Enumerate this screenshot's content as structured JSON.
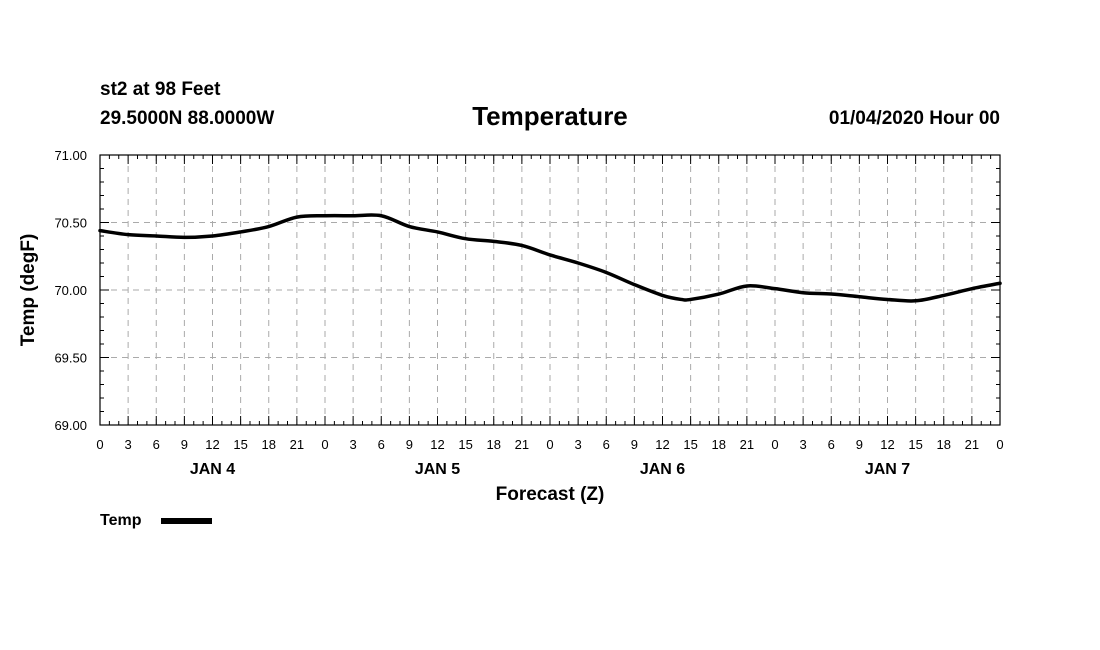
{
  "header": {
    "station": "st2 at 98 Feet",
    "location": "29.5000N 88.0000W",
    "title": "Temperature",
    "datetime": "01/04/2020 Hour 00"
  },
  "chart_data": {
    "type": "line",
    "title": "Temperature",
    "xlabel": "Forecast (Z)",
    "ylabel": "Temp (degF)",
    "ylim": [
      69.0,
      71.0
    ],
    "y_ticks": [
      "69.00",
      "69.50",
      "70.00",
      "70.50",
      "71.00"
    ],
    "xlim": [
      0,
      96
    ],
    "x_tick_labels": [
      "0",
      "3",
      "6",
      "9",
      "12",
      "15",
      "18",
      "21",
      "0",
      "3",
      "6",
      "9",
      "12",
      "15",
      "18",
      "21",
      "0",
      "3",
      "6",
      "9",
      "12",
      "15",
      "18",
      "21",
      "0",
      "3",
      "6",
      "9",
      "12",
      "15",
      "18",
      "21",
      "0"
    ],
    "day_labels": [
      {
        "label": "JAN 4",
        "hour": 12
      },
      {
        "label": "JAN 5",
        "hour": 36
      },
      {
        "label": "JAN 6",
        "hour": 60
      },
      {
        "label": "JAN 7",
        "hour": 84
      }
    ],
    "grid": true,
    "legend_position": "bottom-left",
    "series": [
      {
        "name": "Temp",
        "color": "#000000",
        "x": [
          0,
          3,
          6,
          9,
          12,
          15,
          18,
          21,
          24,
          27,
          30,
          33,
          36,
          39,
          42,
          45,
          48,
          51,
          54,
          57,
          60,
          62,
          63,
          66,
          69,
          72,
          75,
          78,
          81,
          84,
          87,
          90,
          93,
          96
        ],
        "y": [
          70.44,
          70.41,
          70.4,
          70.39,
          70.4,
          70.43,
          70.47,
          70.54,
          70.55,
          70.55,
          70.55,
          70.47,
          70.43,
          70.38,
          70.36,
          70.33,
          70.26,
          70.2,
          70.13,
          70.04,
          69.96,
          69.93,
          69.93,
          69.97,
          70.03,
          70.01,
          69.98,
          69.97,
          69.95,
          69.93,
          69.92,
          69.96,
          70.01,
          70.05
        ]
      }
    ]
  }
}
